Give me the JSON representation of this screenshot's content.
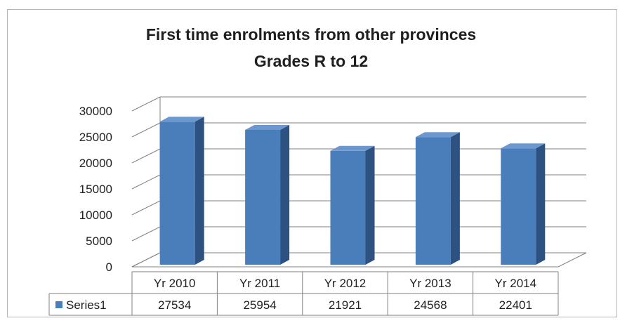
{
  "chart_data": {
    "type": "bar",
    "title_line1": "First time enrolments from other provinces",
    "title_line2": "Grades R to 12",
    "categories": [
      "Yr 2010",
      "Yr 2011",
      "Yr 2012",
      "Yr 2013",
      "Yr 2014"
    ],
    "series": [
      {
        "name": "Series1",
        "values": [
          27534,
          25954,
          21921,
          24568,
          22401
        ],
        "color": "#4a7ebb"
      }
    ],
    "ylim": [
      0,
      30000
    ],
    "yticks": [
      "0",
      "5000",
      "10000",
      "15000",
      "20000",
      "25000",
      "30000"
    ],
    "grid": true,
    "legend": "data-table",
    "table_values": [
      "27534",
      "25954",
      "21921",
      "24568",
      "22401"
    ]
  }
}
